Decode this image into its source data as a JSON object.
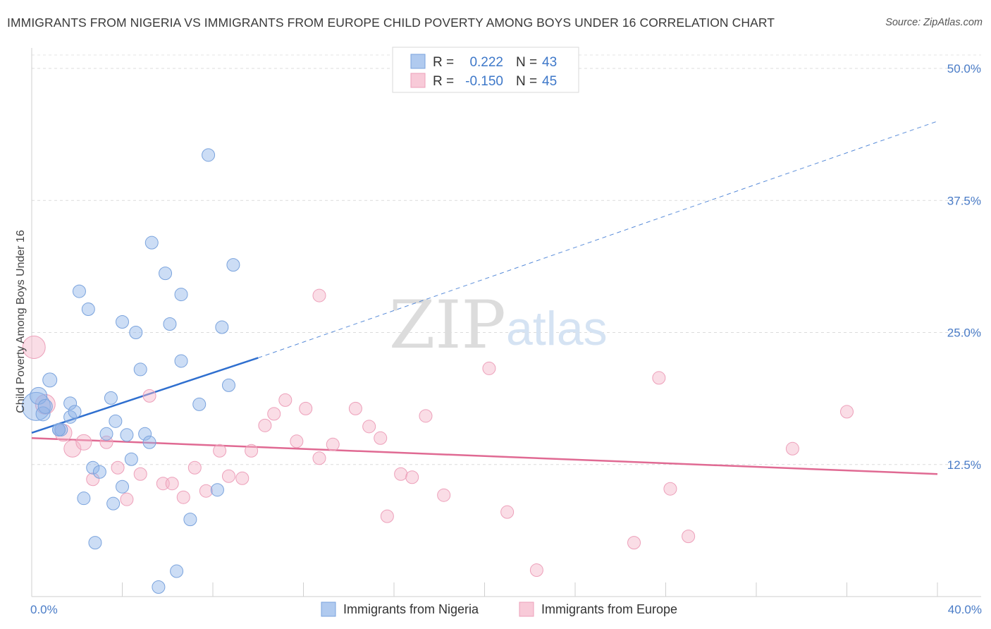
{
  "title": "IMMIGRANTS FROM NIGERIA VS IMMIGRANTS FROM EUROPE CHILD POVERTY AMONG BOYS UNDER 16 CORRELATION CHART",
  "source": "Source: ZipAtlas.com",
  "watermark": {
    "zip": "ZIP",
    "atlas": "atlas"
  },
  "chart_data": {
    "type": "scatter",
    "ylabel": "Child Poverty Among Boys Under 16",
    "xlim": [
      0,
      40
    ],
    "ylim": [
      0,
      50
    ],
    "x_ticks": [
      0,
      4,
      8,
      12,
      16,
      20,
      24,
      28,
      32,
      36,
      40
    ],
    "x_tick_labels": {
      "min": "0.0%",
      "max": "40.0%"
    },
    "y_ticks": [
      12.5,
      25.0,
      37.5,
      50.0
    ],
    "y_tick_labels": [
      "12.5%",
      "25.0%",
      "37.5%",
      "50.0%"
    ],
    "grid": "horizontal dashed",
    "legend_placement": "top-center",
    "stats": [
      {
        "r_label": "R =",
        "r": "0.222",
        "n_label": "N =",
        "n": "43"
      },
      {
        "r_label": "R =",
        "r": "-0.150",
        "n_label": "N =",
        "n": "45"
      }
    ],
    "series": [
      {
        "name": "Immigrants from Nigeria",
        "color": "#8fb4e8",
        "line_color": "#2f6fcf",
        "trend": {
          "x_solid": [
            0,
            10
          ],
          "y_solid": [
            15.5,
            22.6
          ],
          "x_dashed": [
            10,
            40
          ],
          "y_dashed": [
            22.6,
            45.0
          ]
        },
        "points": [
          [
            0.2,
            18.0,
            20
          ],
          [
            0.3,
            19.0,
            12
          ],
          [
            0.5,
            17.3,
            10
          ],
          [
            0.6,
            18.0,
            10
          ],
          [
            0.8,
            20.5,
            10
          ],
          [
            1.2,
            15.8,
            9
          ],
          [
            1.3,
            15.8,
            9
          ],
          [
            1.7,
            17.0,
            9
          ],
          [
            1.7,
            18.3,
            9
          ],
          [
            1.9,
            17.5,
            9
          ],
          [
            2.1,
            28.9,
            9
          ],
          [
            2.5,
            27.2,
            9
          ],
          [
            3.3,
            15.4,
            9
          ],
          [
            3.5,
            18.8,
            9
          ],
          [
            3.7,
            16.6,
            9
          ],
          [
            4.0,
            26.0,
            9
          ],
          [
            4.2,
            15.3,
            9
          ],
          [
            4.4,
            13.0,
            9
          ],
          [
            4.6,
            25.0,
            9
          ],
          [
            4.8,
            21.5,
            9
          ],
          [
            5.0,
            15.4,
            9
          ],
          [
            5.2,
            14.6,
            9
          ],
          [
            5.3,
            33.5,
            9
          ],
          [
            5.9,
            30.6,
            9
          ],
          [
            6.1,
            25.8,
            9
          ],
          [
            6.6,
            28.6,
            9
          ],
          [
            6.6,
            22.3,
            9
          ],
          [
            7.0,
            7.3,
            9
          ],
          [
            7.4,
            18.2,
            9
          ],
          [
            7.8,
            41.8,
            9
          ],
          [
            8.2,
            10.1,
            9
          ],
          [
            8.4,
            25.5,
            9
          ],
          [
            8.7,
            20.0,
            9
          ],
          [
            8.9,
            31.4,
            9
          ],
          [
            2.3,
            9.3,
            9
          ],
          [
            2.7,
            12.2,
            9
          ],
          [
            2.8,
            5.1,
            9
          ],
          [
            3.0,
            11.8,
            9
          ],
          [
            3.6,
            8.8,
            9
          ],
          [
            4.0,
            10.4,
            9
          ],
          [
            6.4,
            2.4,
            9
          ],
          [
            5.6,
            0.9,
            9
          ],
          [
            1.2,
            15.8,
            9
          ]
        ]
      },
      {
        "name": "Immigrants from Europe",
        "color": "#f5b3c8",
        "line_color": "#e06a93",
        "trend": {
          "x": [
            0,
            40
          ],
          "y": [
            15.0,
            11.6
          ]
        },
        "points": [
          [
            0.1,
            23.6,
            16
          ],
          [
            0.6,
            18.2,
            14
          ],
          [
            1.4,
            15.5,
            12
          ],
          [
            1.8,
            14.0,
            12
          ],
          [
            2.3,
            14.6,
            11
          ],
          [
            2.7,
            11.1,
            9
          ],
          [
            3.3,
            14.6,
            9
          ],
          [
            3.8,
            12.2,
            9
          ],
          [
            4.2,
            9.2,
            9
          ],
          [
            4.8,
            11.6,
            9
          ],
          [
            5.2,
            19.0,
            9
          ],
          [
            5.8,
            10.7,
            9
          ],
          [
            6.2,
            10.7,
            9
          ],
          [
            6.7,
            9.4,
            9
          ],
          [
            7.2,
            12.2,
            9
          ],
          [
            7.7,
            10.0,
            9
          ],
          [
            8.3,
            13.8,
            9
          ],
          [
            8.7,
            11.4,
            9
          ],
          [
            9.3,
            11.2,
            9
          ],
          [
            9.7,
            13.8,
            9
          ],
          [
            10.3,
            16.2,
            9
          ],
          [
            10.7,
            17.3,
            9
          ],
          [
            11.2,
            18.6,
            9
          ],
          [
            11.7,
            14.7,
            9
          ],
          [
            12.1,
            17.8,
            9
          ],
          [
            12.7,
            13.1,
            9
          ],
          [
            13.3,
            14.4,
            9
          ],
          [
            12.7,
            28.5,
            9
          ],
          [
            14.3,
            17.8,
            9
          ],
          [
            14.9,
            16.1,
            9
          ],
          [
            15.4,
            15.0,
            9
          ],
          [
            15.7,
            7.6,
            9
          ],
          [
            16.3,
            11.6,
            9
          ],
          [
            16.8,
            11.3,
            9
          ],
          [
            17.4,
            17.1,
            9
          ],
          [
            18.2,
            9.6,
            9
          ],
          [
            20.2,
            21.6,
            9
          ],
          [
            21.0,
            8.0,
            9
          ],
          [
            22.3,
            2.5,
            9
          ],
          [
            26.6,
            5.1,
            9
          ],
          [
            27.7,
            20.7,
            9
          ],
          [
            28.2,
            10.2,
            9
          ],
          [
            29.0,
            5.7,
            9
          ],
          [
            33.6,
            14.0,
            9
          ],
          [
            36.0,
            17.5,
            9
          ]
        ]
      }
    ]
  }
}
